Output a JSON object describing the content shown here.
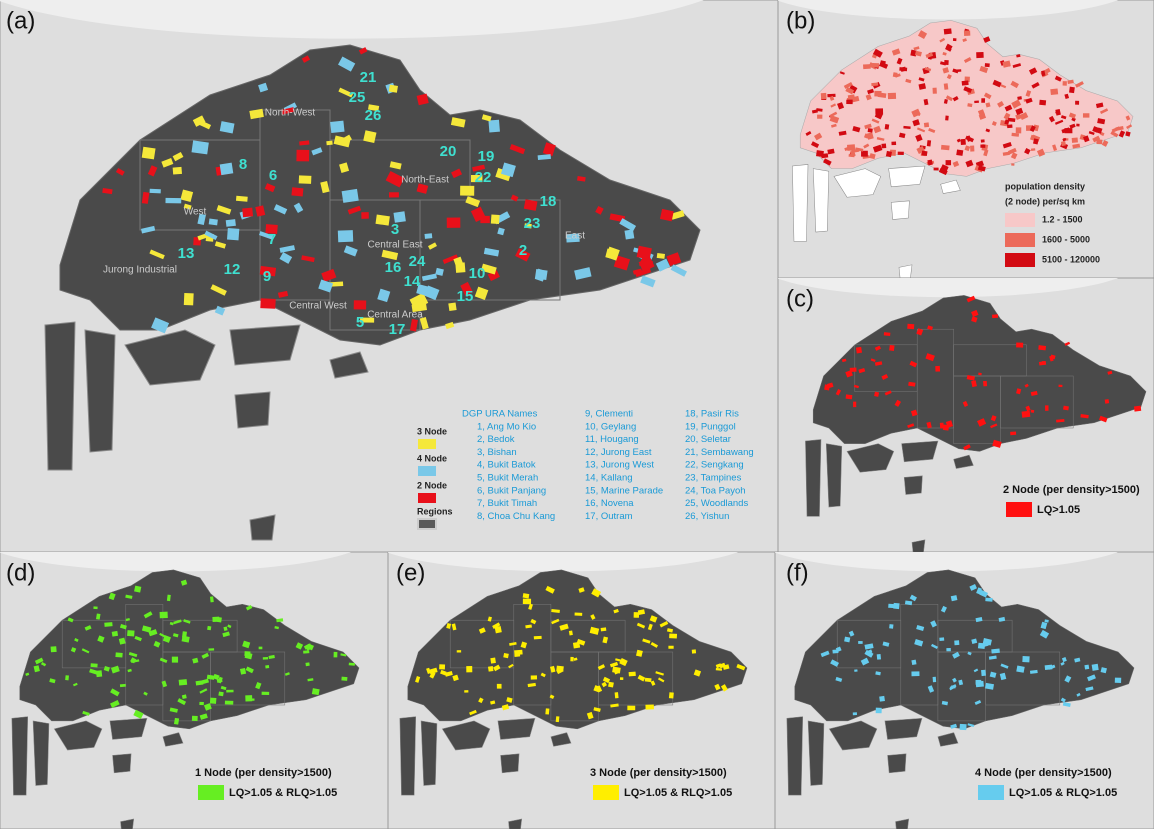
{
  "panel_labels": [
    "(a)",
    "(b)",
    "(c)",
    "(d)",
    "(e)",
    "(f)"
  ],
  "panel_a": {
    "regions": [
      "North-West",
      "North-East",
      "West",
      "Jurong Industrial",
      "Central West",
      "Central Area",
      "Central East",
      "East"
    ],
    "map_labels": [
      "21",
      "25",
      "26",
      "8",
      "6",
      "20",
      "19",
      "22",
      "3",
      "7",
      "13",
      "12",
      "9",
      "16",
      "24",
      "14",
      "5",
      "17",
      "18",
      "23",
      "2",
      "10",
      "15"
    ],
    "legend": [
      "3 Node",
      "4 Node",
      "2 Node",
      "Regions"
    ],
    "names_title": "DGP URA Names",
    "names": [
      "1, Ang Mo Kio",
      "2, Bedok",
      "3, Bishan",
      "4, Bukit Batok",
      "5, Bukit Merah",
      "6, Bukit Panjang",
      "7, Bukit Timah",
      "8, Choa Chu Kang",
      "9, Clementi",
      "10, Geylang",
      "11, Hougang",
      "12, Jurong East",
      "13, Jurong West",
      "14, Kallang",
      "15, Marine Parade",
      "16, Novena",
      "17, Outram",
      "18, Pasir Ris",
      "19, Punggol",
      "20, Seletar",
      "21, Sembawang",
      "22, Sengkang",
      "23, Tampines",
      "24, Toa Payoh",
      "25, Woodlands",
      "26, Yishun"
    ]
  },
  "panel_b": {
    "legend_title": [
      "population density",
      "(2 node) per/sq km"
    ],
    "classes": [
      "1.2 - 1500",
      "1600 - 5000",
      "5100 - 120000"
    ]
  },
  "panel_c": {
    "title": "2 Node (per density>1500)",
    "item": "LQ>1.05"
  },
  "panel_d": {
    "title": "1 Node (per density>1500)",
    "item": "LQ>1.05 & RLQ>1.05"
  },
  "panel_e": {
    "title": "3 Node (per density>1500)",
    "item": "LQ>1.05 & RLQ>1.05"
  },
  "panel_f": {
    "title": "4 Node (per density>1500)",
    "item": "LQ>1.05 & RLQ>1.05"
  }
}
